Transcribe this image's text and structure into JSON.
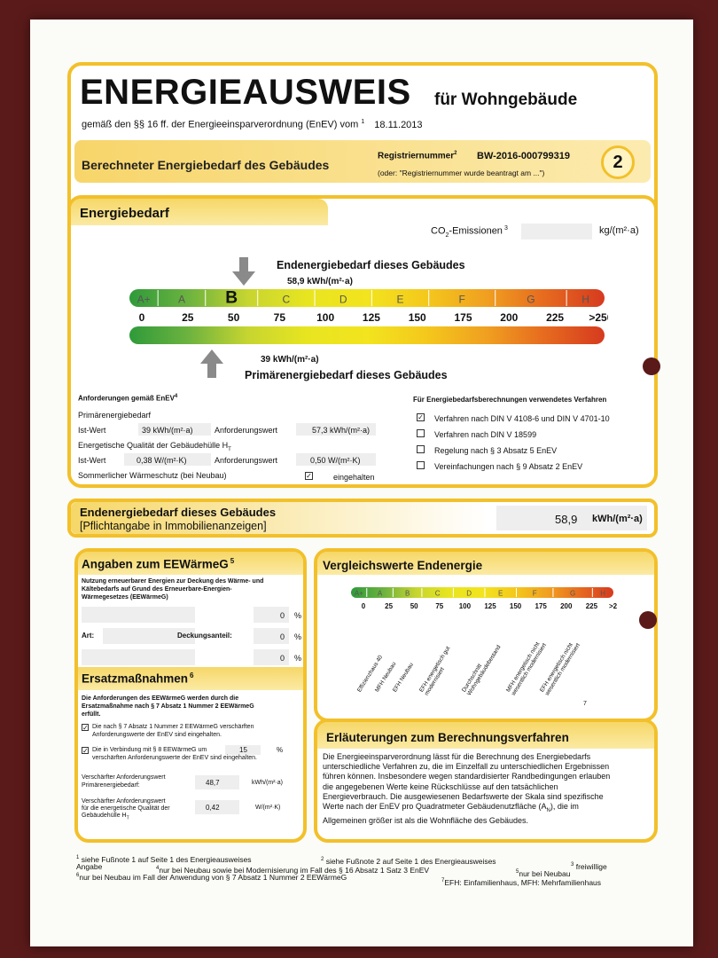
{
  "header": {
    "title": "ENERGIEAUSWEIS",
    "subtitle": "für Wohngebäude",
    "law_line": "gemäß den §§ 16 ff. der Energieeinsparverordnung (EnEV) vom",
    "law_sup": "1",
    "date": "18.11.2013"
  },
  "section_bar": {
    "title": "Berechneter Energiebedarf des Gebäudes",
    "reg_label": "Registriernummer",
    "reg_sup": "2",
    "reg_number": "BW-2016-000799319",
    "reg_note": "(oder: \"Registriernummer wurde beantragt am ...\")",
    "page_number": "2"
  },
  "energiebedarf": {
    "title": "Energiebedarf",
    "co2_label": "CO",
    "co2_sub": "2",
    "co2_rest": "-Emissionen",
    "co2_sup": "3",
    "co2_unit": "kg/(m²·a)",
    "end_title": "Endenergiebedarf dieses Gebäudes",
    "end_value": "58,9  kWh/(m²·a)",
    "prim_value": "39  kWh/(m²·a)",
    "prim_title": "Primärenergiebedarf dieses Gebäudes",
    "classes": [
      "A+",
      "A",
      "B",
      "C",
      "D",
      "E",
      "F",
      "G",
      "H"
    ],
    "scale": [
      "0",
      "25",
      "50",
      "75",
      "100",
      "125",
      "150",
      "175",
      "200",
      "225",
      ">250"
    ],
    "end_value_num": 58.9,
    "prim_value_num": 39
  },
  "requirements": {
    "title": "Anforderungen gemäß EnEV",
    "title_sup": "4",
    "primaer_label": "Primärenergiebedarf",
    "ist_label": "Ist-Wert",
    "ist_prim": "39  kWh/(m²·a)",
    "anf_label": "Anforderungswert",
    "anf_prim": "57,3  kWh/(m²·a)",
    "quality_label": "Energetische Qualität der Gebäudehülle H",
    "quality_sub": "T",
    "ist_ht": "0,38  W/(m²·K)",
    "anf_ht": "0,50  W/(m²·K)",
    "summer_label": "Sommerlicher Wärmeschutz (bei Neubau)",
    "summer_value": "eingehalten",
    "methods_title": "Für Energiebedarfsberechnungen verwendetes Verfahren",
    "methods": [
      {
        "label": "Verfahren nach DIN V 4108-6 und DIN V 4701-10",
        "checked": true
      },
      {
        "label": "Verfahren nach DIN V 18599",
        "checked": false
      },
      {
        "label": "Regelung nach § 3 Absatz 5 EnEV",
        "checked": false
      },
      {
        "label": "Vereinfachungen nach § 9 Absatz 2 EnEV",
        "checked": false
      }
    ]
  },
  "endenergie_box": {
    "title": "Endenergiebedarf dieses Gebäudes",
    "subtitle": "[Pflichtangabe in Immobilienanzeigen]",
    "value": "58,9",
    "unit": "kWh/(m²·a)"
  },
  "eewaerme": {
    "title": "Angaben zum EEWärmeG",
    "title_sup": "5",
    "intro": [
      "Nutzung erneuerbarer Energien zur Deckung des Wärme- und",
      "Kältebedarfs auf Grund des Erneuerbare-Energien-",
      "Wärmegesetzes (EEWärmeG)"
    ],
    "art_label": "Art:",
    "anteil_label": "Deckungsanteil:",
    "percents": [
      "0",
      "0",
      "0"
    ],
    "percent_sign": "%"
  },
  "ersatz": {
    "title": "Ersatzmaßnahmen",
    "title_sup": "6",
    "intro": [
      "Die Anforderungen des EEWärmeG werden durch die",
      "Ersatzmaßnahme nach § 7 Absatz 1 Nummer 2 EEWärmeG",
      "erfüllt."
    ],
    "item1": [
      "Die nach § 7 Absatz 1 Nummer 2 EEWärmeG verschärften",
      "Anforderungswerte der EnEV sind eingehalten."
    ],
    "item2a": "Die in Verbindung mit § 8 EEWärmeG um",
    "item2_value": "15",
    "item2_unit": "%",
    "item2b": "verschärften Anforderungswerte der EnEV sind eingehalten.",
    "prim_label": [
      "Verschärfter Anforderungswert",
      "Primärenergiebedarf:"
    ],
    "prim_value": "48,7",
    "prim_unit": "kWh/(m²·a)",
    "ht_label": [
      "Verschärfter Anforderungswert",
      "für die energetische Qualität der",
      "Gebäudehülle H"
    ],
    "ht_sub": "T",
    "ht_value": "0,42",
    "ht_unit": "W/(m²·K)"
  },
  "vergleich": {
    "title": "Vergleichswerte Endenergie",
    "classes": [
      "A+",
      "A",
      "B",
      "C",
      "D",
      "E",
      "F",
      "G",
      "H"
    ],
    "scale": [
      "0",
      "25",
      "50",
      "75",
      "100",
      "125",
      "150",
      "175",
      "200",
      "225",
      ">250"
    ],
    "refs": [
      "Effizienzhaus 40",
      "MFH Neubau",
      "EFH Neubau",
      "EFH energetisch gut modernisiert",
      "Durchschnitt Wohngebäudebestand",
      "MFH energetisch nicht wesentlich modernisiert",
      "EFH energetisch nicht wesentlich modernisiert"
    ],
    "footnote": "7"
  },
  "erlaeuterung": {
    "title": "Erläuterungen zum Berechnungsverfahren",
    "lines": [
      "Die Energieeinsparverordnung lässt für die Berechnung des Energiebedarfs",
      "unterschiedliche Verfahren zu, die im Einzelfall zu unterschiedlichen Ergebnissen",
      "führen können. Insbesondere wegen standardisierter Randbedingungen erlauben",
      "die angegebenen Werte keine Rückschlüsse auf den tatsächlichen",
      "Energieverbrauch. Die ausgewiesenen Bedarfswerte der Skala sind spezifische",
      "Werte nach der EnEV pro Quadratmeter Gebäudenutzfläche (A",
      "Allgemeinen größer ist als die Wohnfläche des Gebäudes."
    ],
    "line6_sub": "N",
    "line6_end": "), die im"
  },
  "footnotes": {
    "f1": "siehe Fußnote 1 auf Seite 1 des Energieausweises",
    "f2": "siehe Fußnote 2 auf Seite 1 des Energieausweises",
    "f3": "freiwillige",
    "f3b": "Angabe",
    "f4": "nur bei Neubau sowie bei Modernisierung im Fall des § 16 Absatz 1 Satz 3 EnEV",
    "f5": "nur bei Neubau",
    "f6": "nur bei Neubau im Fall der Anwendung von § 7 Absatz 1 Nummer 2 EEWärmeG",
    "f7": "EFH: Einfamilienhaus, MFH: Mehrfamilienhaus"
  },
  "colors": {
    "frame": "#f2c02a",
    "header_fill": "#f6d768",
    "hole": "#5a1a1a"
  }
}
